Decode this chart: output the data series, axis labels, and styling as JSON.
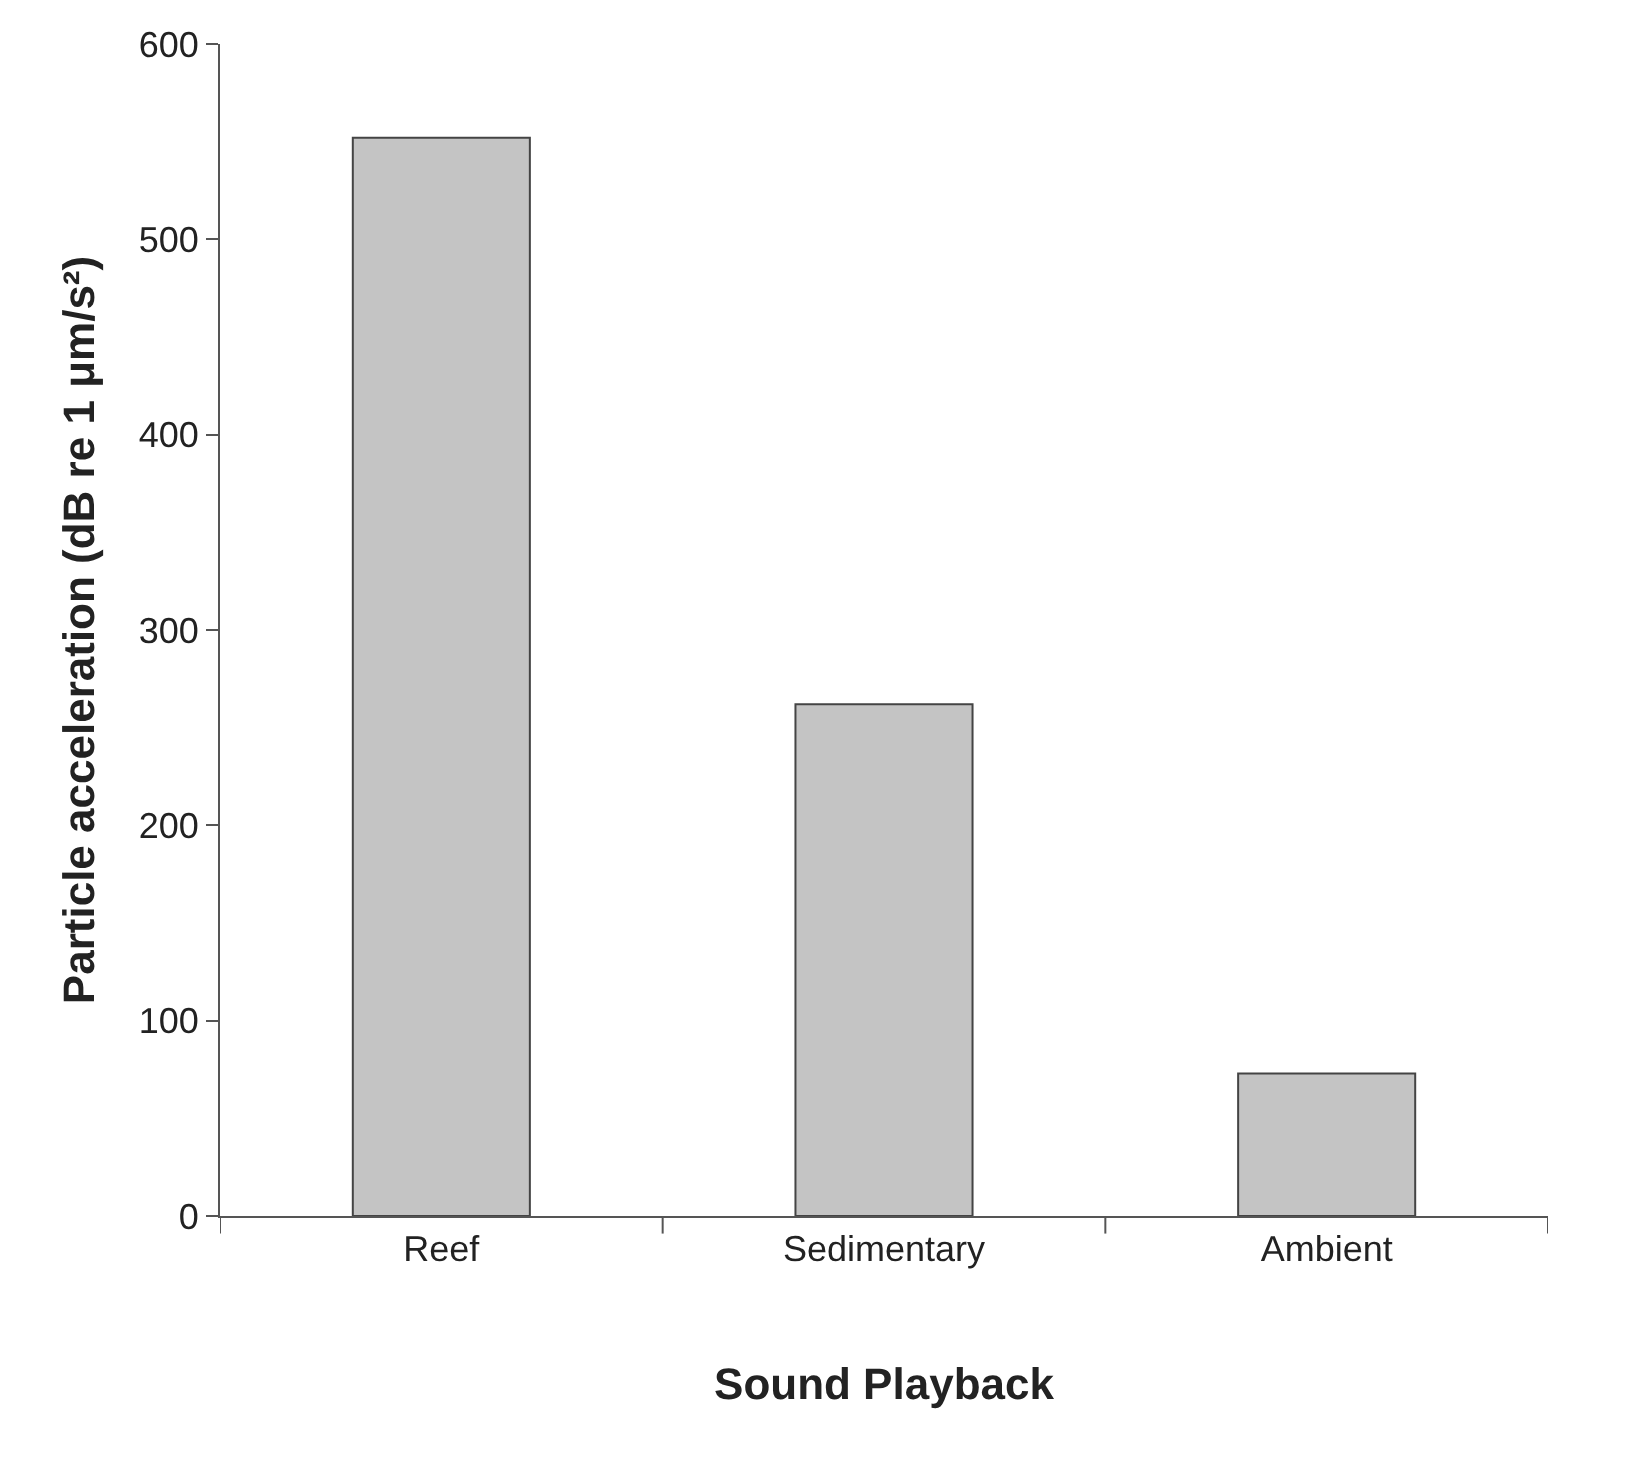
{
  "chart_data": {
    "type": "bar",
    "xlabel": "Sound Playback",
    "ylabel": "Particle acceleration (dB re 1 μm/s²)",
    "categories": [
      "Reef",
      "Sedimentary",
      "Ambient"
    ],
    "values": [
      552,
      262,
      73
    ],
    "color": "#c4c4c4",
    "ylim": [
      0,
      600
    ],
    "yticks": [
      0,
      100,
      200,
      300,
      400,
      500,
      600
    ],
    "legend": false
  }
}
